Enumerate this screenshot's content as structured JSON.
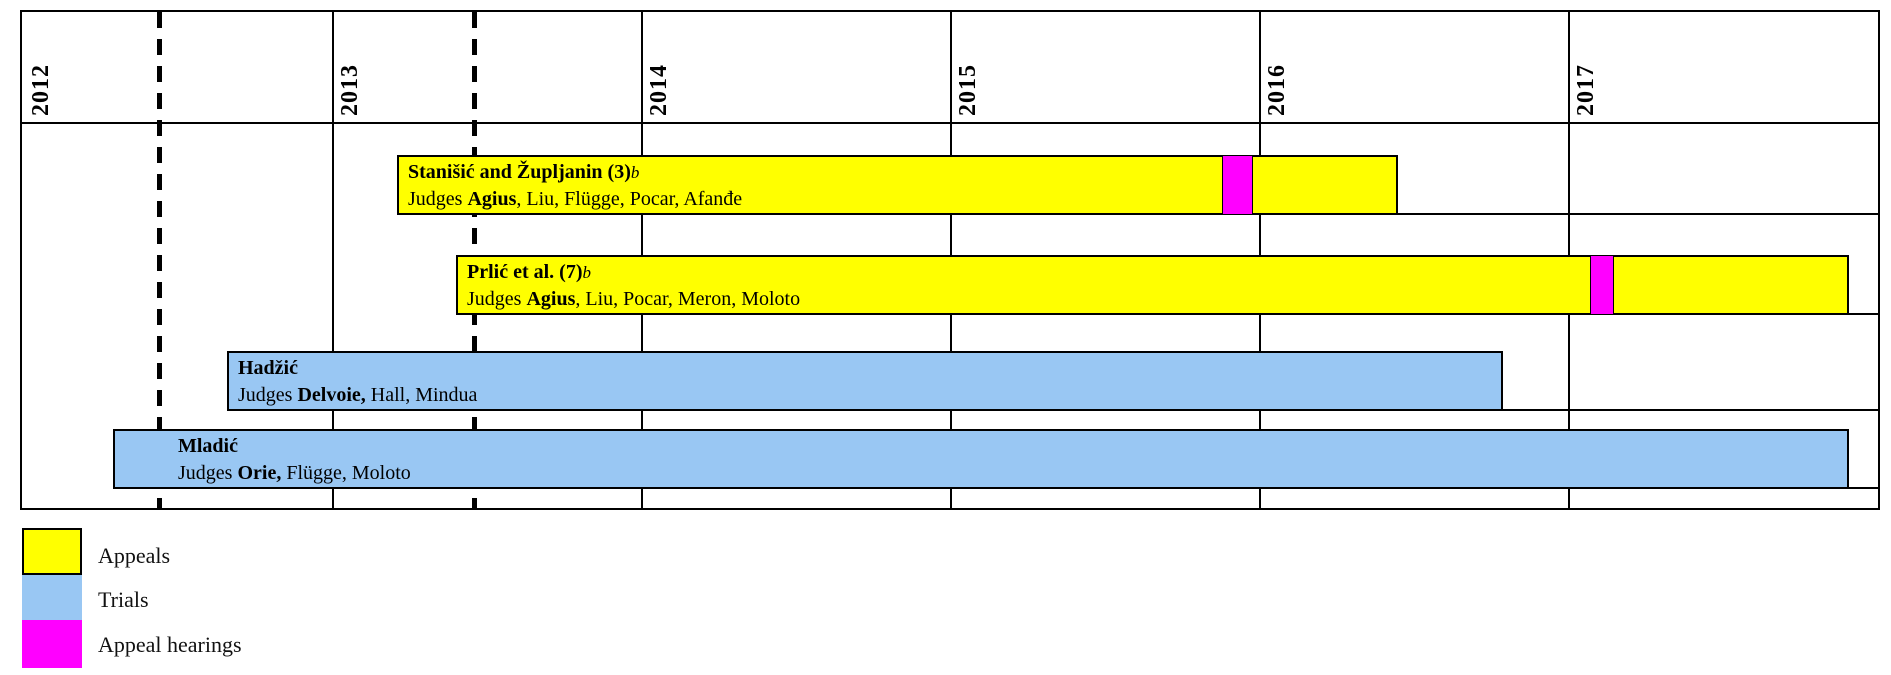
{
  "chart_data": {
    "type": "gantt",
    "title": "",
    "x_axis": {
      "unit": "year",
      "range": [
        2012,
        2018
      ],
      "tick_labels": [
        "2012",
        "2013",
        "2014",
        "2015",
        "2016",
        "2017"
      ],
      "tick_years": [
        2012,
        2013,
        2014,
        2015,
        2016,
        2017
      ],
      "grid": true
    },
    "projection_dashed_lines_years": [
      2012.44,
      2013.46
    ],
    "rows": [
      {
        "case": "Stanišić and Župljanin (3)",
        "footnote_marker": "b",
        "judges_prefix": "Judges ",
        "judges_bold": "Agius",
        "judges_rest": ", Liu, Flügge, Pocar, Afanđe",
        "kind": "appeal",
        "start": 2013.21,
        "end": 2016.45,
        "hearing_start": 2015.88,
        "hearing_end": 2015.98
      },
      {
        "case": "Prlić et al. (7)",
        "footnote_marker": "b",
        "judges_prefix": "Judges ",
        "judges_bold": "Agius",
        "judges_rest": ", Liu, Pocar, Meron, Moloto",
        "kind": "appeal",
        "start": 2013.4,
        "end": 2017.91,
        "hearing_start": 2017.07,
        "hearing_end": 2017.15
      },
      {
        "case": "Hadžić",
        "footnote_marker": "",
        "judges_prefix": "Judges ",
        "judges_bold": "Delvoie,",
        "judges_rest": " Hall, Mindua",
        "kind": "trial",
        "start": 2012.66,
        "end": 2016.79
      },
      {
        "case": "Mladić",
        "footnote_marker": "",
        "judges_prefix": "Judges ",
        "judges_bold": "Orie,",
        "judges_rest": " Flügge, Moloto",
        "kind": "trial",
        "start": 2012.29,
        "end": 2017.91,
        "label_indented": true
      }
    ],
    "colors": {
      "appeal": "#FFFF00",
      "trial": "#99C7F3",
      "hearing": "#FF00FF",
      "line": "#000000"
    },
    "legend": [
      {
        "label": "Appeals",
        "color": "#FFFF00"
      },
      {
        "label": "Trials",
        "color": "#99C7F3"
      },
      {
        "label": "Appeal hearings",
        "color": "#FF00FF"
      }
    ],
    "legend_position": "bottom-left"
  }
}
